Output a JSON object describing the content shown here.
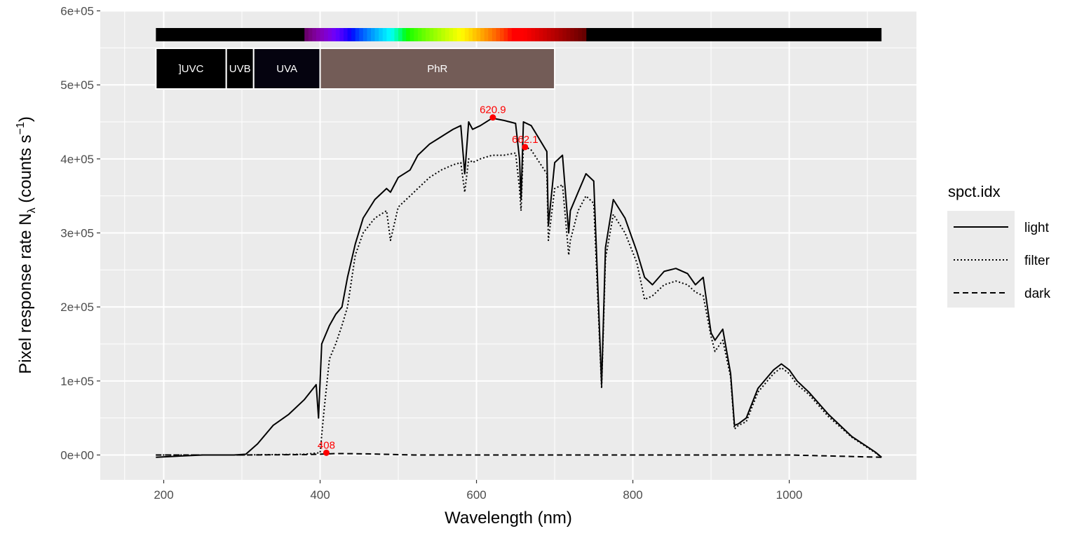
{
  "chart_data": {
    "type": "line",
    "xlabel": "Wavelength (nm)",
    "ylabel": {
      "prefix": "Pixel  response  rate  N",
      "subscript": "λ",
      "unit_open": "  (counts  s",
      "superscript": "−1",
      "unit_close": ")"
    },
    "xlim": [
      120,
      1160
    ],
    "ylim": [
      -30000,
      600000
    ],
    "x_ticks": [
      {
        "value": 200,
        "label": "200"
      },
      {
        "value": 400,
        "label": "400"
      },
      {
        "value": 600,
        "label": "600"
      },
      {
        "value": 800,
        "label": "800"
      },
      {
        "value": 1000,
        "label": "1000"
      }
    ],
    "y_ticks": [
      {
        "value": 0,
        "label": "0e+00"
      },
      {
        "value": 100000,
        "label": "1e+05"
      },
      {
        "value": 200000,
        "label": "2e+05"
      },
      {
        "value": 300000,
        "label": "3e+05"
      },
      {
        "value": 400000,
        "label": "4e+05"
      },
      {
        "value": 500000,
        "label": "5e+05"
      },
      {
        "value": 600000,
        "label": "6e+05"
      }
    ],
    "grid": true,
    "legend": {
      "title": "spct.idx",
      "position": "right",
      "entries": [
        {
          "label": "light",
          "dash": "solid"
        },
        {
          "label": "filter",
          "dash": "dotted"
        },
        {
          "label": "dark",
          "dash": "dashed"
        }
      ]
    },
    "series": [
      {
        "name": "light",
        "dash": "solid",
        "x": [
          190,
          250,
          290,
          305,
          320,
          340,
          360,
          380,
          395,
          398,
          402,
          412,
          420,
          428,
          435,
          445,
          455,
          470,
          485,
          490,
          500,
          515,
          525,
          540,
          555,
          570,
          580,
          585,
          590,
          595,
          605,
          620,
          635,
          650,
          655,
          657,
          660,
          670,
          690,
          692,
          700,
          710,
          718,
          720,
          730,
          740,
          750,
          760,
          765,
          775,
          790,
          805,
          815,
          825,
          840,
          855,
          870,
          880,
          890,
          900,
          905,
          915,
          925,
          930,
          935,
          945,
          960,
          980,
          990,
          1000,
          1010,
          1025,
          1050,
          1080,
          1110,
          1118
        ],
        "y": [
          -3000,
          0,
          0,
          1000,
          15000,
          40000,
          55000,
          75000,
          95000,
          50000,
          150000,
          175000,
          190000,
          200000,
          240000,
          285000,
          320000,
          345000,
          360000,
          355000,
          375000,
          385000,
          405000,
          420000,
          430000,
          440000,
          445000,
          380000,
          450000,
          440000,
          445000,
          455000,
          452000,
          448000,
          400000,
          345000,
          450000,
          445000,
          410000,
          310000,
          395000,
          405000,
          300000,
          330000,
          355000,
          380000,
          370000,
          95000,
          280000,
          345000,
          320000,
          275000,
          240000,
          230000,
          248000,
          252000,
          245000,
          230000,
          240000,
          165000,
          155000,
          170000,
          110000,
          40000,
          42000,
          50000,
          90000,
          115000,
          123000,
          115000,
          100000,
          85000,
          55000,
          25000,
          4000,
          -3000
        ]
      },
      {
        "name": "filter",
        "dash": "dotted",
        "x": [
          190,
          300,
          380,
          400,
          405,
          412,
          420,
          428,
          435,
          445,
          455,
          470,
          485,
          490,
          500,
          515,
          525,
          540,
          555,
          570,
          580,
          585,
          590,
          595,
          605,
          620,
          635,
          650,
          655,
          657,
          660,
          670,
          690,
          692,
          700,
          710,
          718,
          720,
          730,
          740,
          750,
          760,
          765,
          775,
          790,
          805,
          815,
          825,
          840,
          855,
          870,
          880,
          890,
          900,
          905,
          915,
          925,
          930,
          935,
          945,
          960,
          980,
          990,
          1000,
          1010,
          1025,
          1050,
          1080,
          1110,
          1118
        ],
        "y": [
          0,
          0,
          1000,
          3000,
          60000,
          130000,
          150000,
          175000,
          200000,
          270000,
          300000,
          320000,
          330000,
          290000,
          335000,
          350000,
          360000,
          375000,
          385000,
          392000,
          395000,
          355000,
          400000,
          395000,
          400000,
          405000,
          405000,
          408000,
          360000,
          330000,
          418000,
          412000,
          380000,
          290000,
          360000,
          365000,
          270000,
          290000,
          330000,
          350000,
          340000,
          90000,
          265000,
          325000,
          300000,
          260000,
          210000,
          215000,
          230000,
          235000,
          230000,
          220000,
          215000,
          160000,
          140000,
          155000,
          105000,
          35000,
          40000,
          45000,
          85000,
          110000,
          118000,
          110000,
          95000,
          82000,
          52000,
          24000,
          3000,
          -3000
        ]
      },
      {
        "name": "dark",
        "dash": "dashed",
        "x": [
          190,
          300,
          380,
          400,
          420,
          460,
          520,
          600,
          800,
          1000,
          1118
        ],
        "y": [
          0,
          0,
          500,
          1000,
          2000,
          1500,
          0,
          0,
          0,
          0,
          -3000
        ]
      }
    ],
    "wavelength_bands": [
      {
        "label": "]UVC",
        "from": 190,
        "to": 280,
        "color": "#000000"
      },
      {
        "label": "UVB",
        "from": 280,
        "to": 315,
        "color": "#000000"
      },
      {
        "label": "UVA",
        "from": 315,
        "to": 400,
        "color": "#05030f"
      },
      {
        "label": "PhR",
        "from": 400,
        "to": 700,
        "color": "#735c57"
      }
    ],
    "spectrum_bar": {
      "from": 190,
      "to": 1118
    },
    "annotations": [
      {
        "x": 620.9,
        "y": 456000,
        "label": "620.9",
        "color": "#ff0000"
      },
      {
        "x": 662.1,
        "y": 416000,
        "label": "662.1",
        "color": "#ff0000"
      },
      {
        "x": 408,
        "y": 3000,
        "label": "408",
        "color": "#ff0000"
      }
    ]
  }
}
